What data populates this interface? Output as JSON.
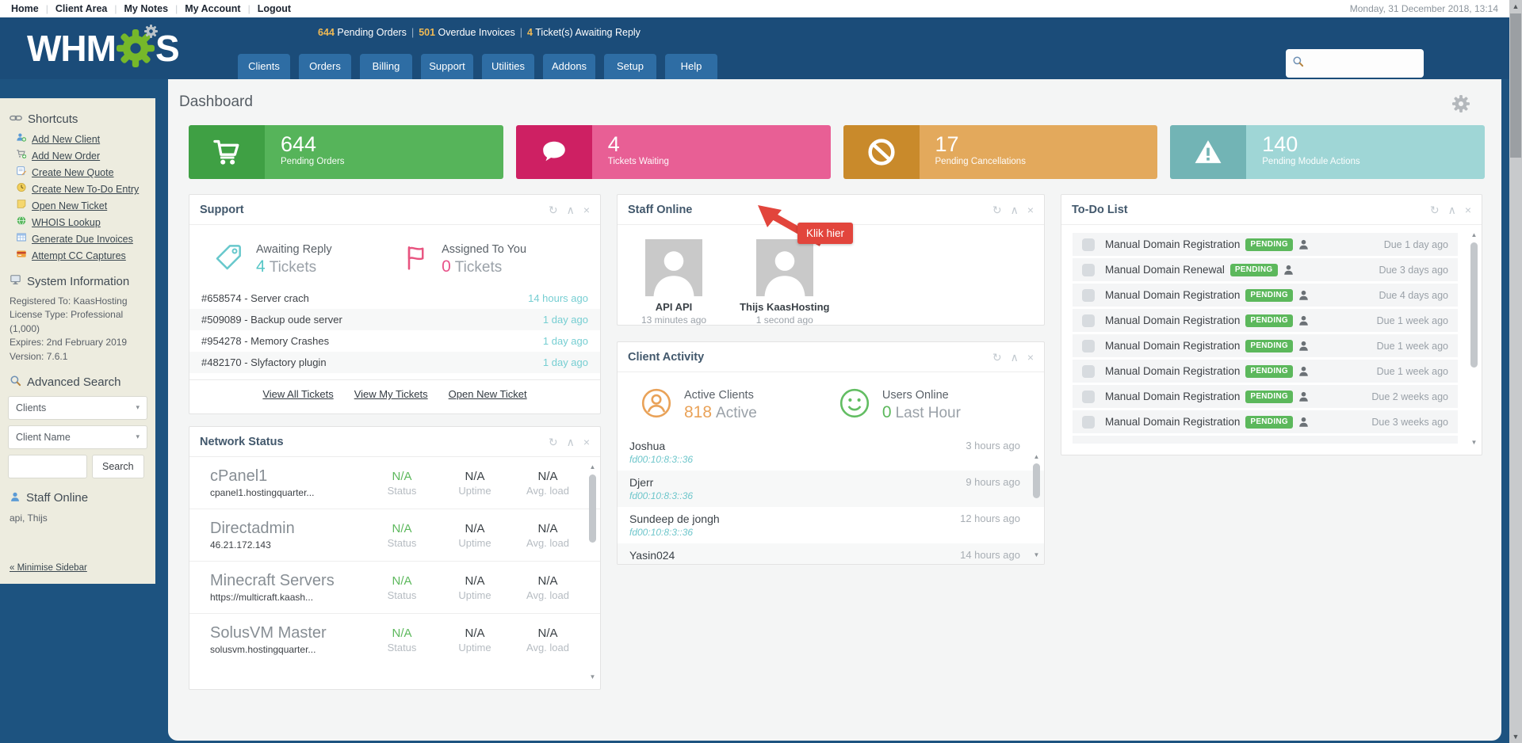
{
  "topbar": {
    "links": [
      "Home",
      "Client Area",
      "My Notes",
      "My Account",
      "Logout"
    ],
    "datetime": "Monday, 31 December 2018, 13:14"
  },
  "header": {
    "logo_left": "WHM",
    "logo_right": "S",
    "alerts": [
      {
        "value": "644",
        "label": "Pending Orders"
      },
      {
        "value": "501",
        "label": "Overdue Invoices"
      },
      {
        "value": "4",
        "label": "Ticket(s) Awaiting Reply"
      }
    ],
    "tabs": [
      "Clients",
      "Orders",
      "Billing",
      "Support",
      "Utilities",
      "Addons",
      "Setup",
      "Help"
    ],
    "search_value": ""
  },
  "sidebar": {
    "shortcuts": {
      "title": "Shortcuts",
      "items": [
        {
          "icon": "add-client-icon",
          "label": "Add New Client"
        },
        {
          "icon": "add-order-icon",
          "label": "Add New Order"
        },
        {
          "icon": "quote-icon",
          "label": "Create New Quote"
        },
        {
          "icon": "todo-entry-icon",
          "label": "Create New To-Do Entry"
        },
        {
          "icon": "ticket-icon",
          "label": "Open New Ticket"
        },
        {
          "icon": "globe-icon",
          "label": "WHOIS Lookup"
        },
        {
          "icon": "invoices-icon",
          "label": "Generate Due Invoices"
        },
        {
          "icon": "credit-card-icon",
          "label": "Attempt CC Captures"
        }
      ]
    },
    "system_information": {
      "title": "System Information",
      "lines": [
        "Registered To: KaasHosting",
        "License Type: Professional (1,000)",
        "Expires: 2nd February 2019",
        "Version: 7.6.1"
      ]
    },
    "advanced_search": {
      "title": "Advanced Search",
      "type_select": "Clients",
      "field_select": "Client Name",
      "button": "Search"
    },
    "staff_online": {
      "title": "Staff Online",
      "names": "api, Thijs"
    },
    "minimise": "« Minimise Sidebar"
  },
  "main": {
    "title": "Dashboard",
    "stat_cards": [
      {
        "icon": "cart-icon",
        "value": "644",
        "label": "Pending Orders",
        "color_dark": "#3fa044",
        "color_light": "#56b45a"
      },
      {
        "icon": "chat-bubble-icon",
        "value": "4",
        "label": "Tickets Waiting",
        "color_dark": "#ce2063",
        "color_light": "#e85f95"
      },
      {
        "icon": "ban-icon",
        "value": "17",
        "label": "Pending Cancellations",
        "color_dark": "#c98a2b",
        "color_light": "#e3a95c"
      },
      {
        "icon": "warning-icon",
        "value": "140",
        "label": "Pending Module Actions",
        "color_dark": "#72b4b5",
        "color_light": "#9fd6d6"
      }
    ],
    "tooltip": "Klik hier",
    "support": {
      "title": "Support",
      "stats": [
        {
          "icon": "tag-icon",
          "label": "Awaiting Reply",
          "value": "4",
          "suffix": "Tickets"
        },
        {
          "icon": "flag-icon",
          "label": "Assigned To You",
          "value": "0",
          "suffix": "Tickets"
        }
      ],
      "tickets": [
        {
          "subject": "#658574 - Server crach",
          "time": "14 hours ago"
        },
        {
          "subject": "#509089 - Backup oude server",
          "time": "1 day ago"
        },
        {
          "subject": "#954278 - Memory Crashes",
          "time": "1 day ago"
        },
        {
          "subject": "#482170 - Slyfactory plugin",
          "time": "1 day ago"
        }
      ],
      "links": [
        "View All Tickets",
        "View My Tickets",
        "Open New Ticket"
      ]
    },
    "network": {
      "title": "Network Status",
      "servers": [
        {
          "name": "cPanel1",
          "host": "cpanel1.hostingquarter...",
          "status": "N/A",
          "uptime": "N/A",
          "load": "N/A"
        },
        {
          "name": "Directadmin",
          "host": "46.21.172.143",
          "status": "N/A",
          "uptime": "N/A",
          "load": "N/A"
        },
        {
          "name": "Minecraft Servers",
          "host": "https://multicraft.kaash...",
          "status": "N/A",
          "uptime": "N/A",
          "load": "N/A"
        },
        {
          "name": "SolusVM Master",
          "host": "solusvm.hostingquarter...",
          "status": "N/A",
          "uptime": "N/A",
          "load": "N/A"
        }
      ],
      "col_labels": [
        "Status",
        "Uptime",
        "Avg. load"
      ]
    },
    "staff": {
      "title": "Staff Online",
      "members": [
        {
          "name": "API API",
          "time": "13 minutes ago"
        },
        {
          "name": "Thijs KaasHosting",
          "time": "1 second ago"
        }
      ]
    },
    "activity": {
      "title": "Client Activity",
      "stats": [
        {
          "icon": "person-circle-icon",
          "label": "Active Clients",
          "value": "818",
          "suffix": "Active"
        },
        {
          "icon": "smiley-icon",
          "label": "Users Online",
          "value": "0",
          "suffix": "Last Hour"
        }
      ],
      "rows": [
        {
          "name": "Joshua",
          "ip": "fd00:10:8:3::36",
          "time": "3 hours ago"
        },
        {
          "name": "Djerr",
          "ip": "fd00:10:8:3::36",
          "time": "9 hours ago"
        },
        {
          "name": "Sundeep de jongh",
          "ip": "fd00:10:8:3::36",
          "time": "12 hours ago"
        },
        {
          "name": "Yasin024",
          "ip": "",
          "time": "14 hours ago"
        }
      ]
    },
    "todo": {
      "title": "To-Do List",
      "rows": [
        {
          "label": "Manual Domain Registration",
          "badge": "PENDING",
          "due": "Due 1 day ago"
        },
        {
          "label": "Manual Domain Renewal",
          "badge": "PENDING",
          "due": "Due 3 days ago"
        },
        {
          "label": "Manual Domain Registration",
          "badge": "PENDING",
          "due": "Due 4 days ago"
        },
        {
          "label": "Manual Domain Registration",
          "badge": "PENDING",
          "due": "Due 1 week ago"
        },
        {
          "label": "Manual Domain Registration",
          "badge": "PENDING",
          "due": "Due 1 week ago"
        },
        {
          "label": "Manual Domain Registration",
          "badge": "PENDING",
          "due": "Due 1 week ago"
        },
        {
          "label": "Manual Domain Registration",
          "badge": "PENDING",
          "due": "Due 2 weeks ago"
        },
        {
          "label": "Manual Domain Registration",
          "badge": "PENDING",
          "due": "Due 3 weeks ago"
        }
      ]
    }
  },
  "icons": {
    "refresh": "↻",
    "collapse": "∧",
    "close": "×",
    "caret": "▾",
    "up": "▲",
    "down": "▼"
  },
  "colors": {
    "teal_accent": "#56c6c6",
    "pink_accent": "#e8538a",
    "orange_accent": "#e9a258",
    "green_accent": "#5cb85c",
    "header_blue": "#1b4c79",
    "tab_blue": "#2e6da4",
    "tooltip_red": "#e2453c",
    "sidebar_beige": "#edecdf"
  }
}
